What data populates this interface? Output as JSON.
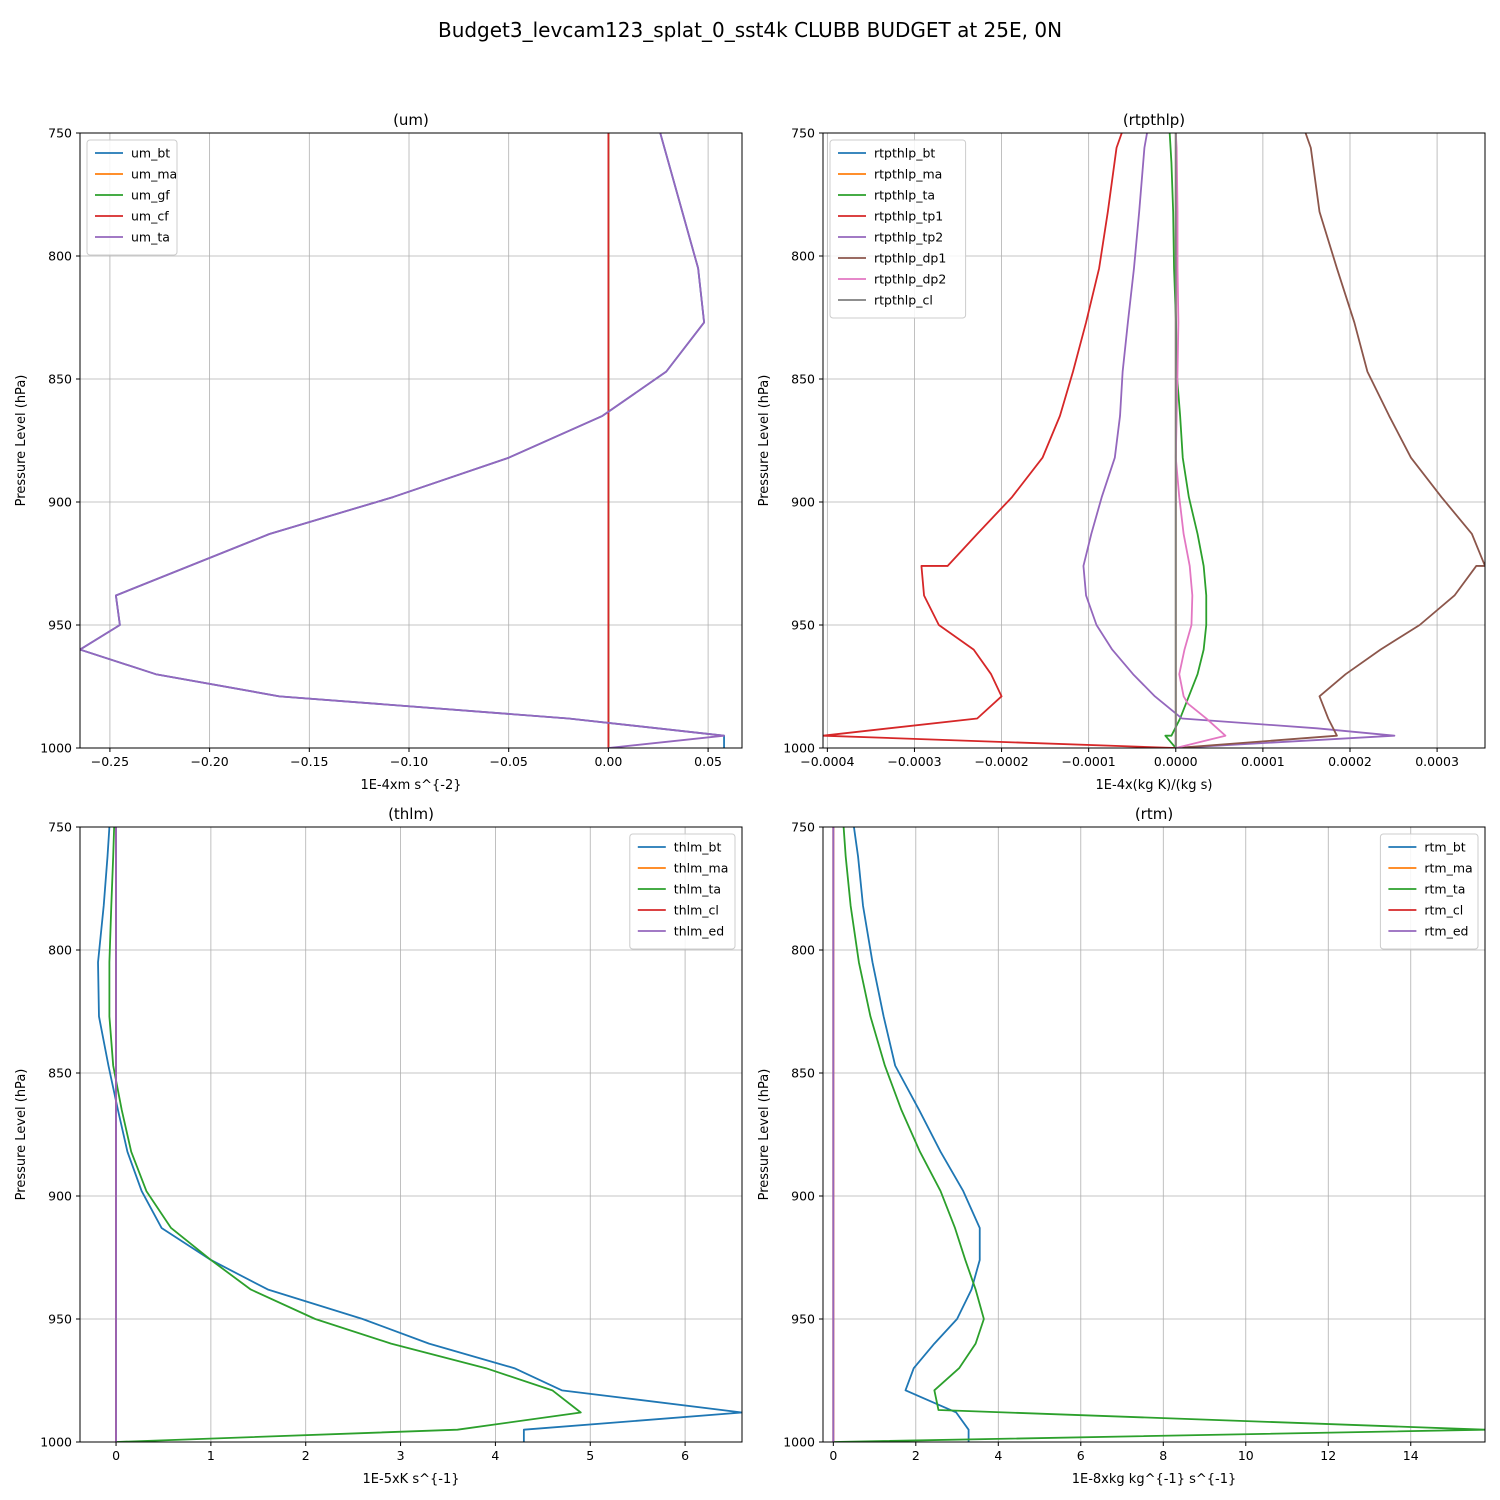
{
  "figure": {
    "title": "Budget3_levcam123_splat_0_sst4k CLUBB BUDGET at 25E, 0N"
  },
  "chart_data": [
    {
      "type": "line",
      "title": "(um)",
      "xlabel": "1E-4xm s^{-2}",
      "ylabel": "Pressure Level (hPa)",
      "xlim": [
        -0.265,
        0.067
      ],
      "ylim": [
        1000,
        750
      ],
      "xticks": [
        -0.25,
        -0.2,
        -0.15,
        -0.1,
        -0.05,
        0.0,
        0.05
      ],
      "xtick_labels": [
        "−0.25",
        "−0.20",
        "−0.15",
        "−0.10",
        "−0.05",
        "0.00",
        "0.05"
      ],
      "yticks": [
        750,
        800,
        850,
        900,
        950,
        1000
      ],
      "ytick_labels": [
        "750",
        "800",
        "850",
        "900",
        "950",
        "1000"
      ],
      "grid": true,
      "legend": "upper-left",
      "series": [
        {
          "name": "um_bt",
          "color": "#1f77b4",
          "x": [
            0.026,
            0.045,
            0.048,
            0.029,
            -0.003,
            -0.05,
            -0.108,
            -0.17,
            -0.247,
            -0.245,
            -0.265,
            -0.227,
            -0.165,
            -0.02,
            0.058,
            0.058
          ],
          "y": [
            750,
            805,
            827,
            847,
            865,
            882,
            898,
            913,
            938,
            950,
            960,
            970,
            979,
            988,
            995,
            1000
          ]
        },
        {
          "name": "um_ma",
          "color": "#ff7f0e",
          "x": [
            0,
            0
          ],
          "y": [
            750,
            1000
          ]
        },
        {
          "name": "um_gf",
          "color": "#2ca02c",
          "x": [
            0,
            0
          ],
          "y": [
            750,
            1000
          ]
        },
        {
          "name": "um_cf",
          "color": "#d62728",
          "x": [
            0,
            0
          ],
          "y": [
            750,
            1000
          ]
        },
        {
          "name": "um_ta",
          "color": "#9467bd",
          "x": [
            0.026,
            0.045,
            0.048,
            0.029,
            -0.003,
            -0.05,
            -0.108,
            -0.17,
            -0.247,
            -0.245,
            -0.265,
            -0.227,
            -0.165,
            -0.02,
            0.058,
            0.0
          ],
          "y": [
            750,
            805,
            827,
            847,
            865,
            882,
            898,
            913,
            938,
            950,
            960,
            970,
            979,
            988,
            995,
            1000
          ]
        }
      ]
    },
    {
      "type": "line",
      "title": "(rtpthlp)",
      "xlabel": "1E-4x(kg K)/(kg s)",
      "ylabel": "Pressure Level (hPa)",
      "xlim": [
        -0.000405,
        0.000355
      ],
      "ylim": [
        1000,
        750
      ],
      "xticks": [
        -0.0004,
        -0.0003,
        -0.0002,
        -0.0001,
        0.0,
        0.0001,
        0.0002,
        0.0003
      ],
      "xtick_labels": [
        "−0.0004",
        "−0.0003",
        "−0.0002",
        "−0.0001",
        "0.0000",
        "0.0001",
        "0.0002",
        "0.0003"
      ],
      "yticks": [
        750,
        800,
        850,
        900,
        950,
        1000
      ],
      "ytick_labels": [
        "750",
        "800",
        "850",
        "900",
        "950",
        "1000"
      ],
      "grid": true,
      "legend": "upper-left",
      "series": [
        {
          "name": "rtpthlp_bt",
          "color": "#1f77b4",
          "x": [
            0,
            0
          ],
          "y": [
            750,
            1000
          ]
        },
        {
          "name": "rtpthlp_ma",
          "color": "#ff7f0e",
          "x": [
            0,
            0
          ],
          "y": [
            750,
            1000
          ]
        },
        {
          "name": "rtpthlp_ta",
          "color": "#2ca02c",
          "x": [
            -7e-06,
            -5e-06,
            -3e-06,
            -2e-06,
            3e-07,
            1e-06,
            5e-06,
            8e-06,
            1.5e-05,
            2.5e-05,
            3.2e-05,
            3.5e-05,
            3.5e-05,
            3.2e-05,
            2.5e-05,
            1.5e-05,
            5e-06,
            -5e-06,
            -1.2e-05,
            0.0
          ],
          "y": [
            750,
            762,
            782,
            805,
            827,
            847,
            865,
            882,
            898,
            913,
            926,
            938,
            950,
            960,
            970,
            979,
            988,
            995,
            995,
            1000
          ]
        },
        {
          "name": "rtpthlp_tp1",
          "color": "#d62728",
          "x": [
            -6.2e-05,
            -6.8e-05,
            -7.8e-05,
            -8.8e-05,
            -0.000103,
            -0.000118,
            -0.000133,
            -0.000153,
            -0.000188,
            -0.000228,
            -0.000262,
            -0.000292,
            -0.000289,
            -0.000272,
            -0.000232,
            -0.000212,
            -0.0002,
            -0.000228,
            -0.000405,
            0.0
          ],
          "y": [
            750,
            756,
            782,
            805,
            827,
            847,
            865,
            882,
            898,
            913,
            926,
            926,
            938,
            950,
            960,
            970,
            979,
            988,
            995,
            1000
          ]
        },
        {
          "name": "rtpthlp_tp2",
          "color": "#9467bd",
          "x": [
            -3.3e-05,
            -3.6e-05,
            -4.2e-05,
            -4.8e-05,
            -5.5e-05,
            -6.1e-05,
            -6.4e-05,
            -7e-05,
            -8.5e-05,
            -9.7e-05,
            -0.000106,
            -0.000103,
            -9.1e-05,
            -7.3e-05,
            -4.9e-05,
            -2.4e-05,
            7e-06,
            0.000162,
            0.000251,
            0.0
          ],
          "y": [
            750,
            756,
            782,
            805,
            827,
            847,
            865,
            882,
            898,
            913,
            926,
            938,
            950,
            960,
            970,
            979,
            988,
            992,
            995,
            1000
          ]
        },
        {
          "name": "rtpthlp_dp1",
          "color": "#8c564b",
          "x": [
            0.000149,
            0.000155,
            0.000165,
            0.000185,
            0.000205,
            0.00022,
            0.000245,
            0.00027,
            0.000305,
            0.00034,
            0.000355,
            0.000345,
            0.00032,
            0.00028,
            0.000235,
            0.000195,
            0.000165,
            0.000175,
            0.000185,
            0.0
          ],
          "y": [
            750,
            756,
            782,
            805,
            827,
            847,
            865,
            882,
            898,
            913,
            926,
            926,
            938,
            950,
            960,
            970,
            979,
            988,
            995,
            1000
          ]
        },
        {
          "name": "rtpthlp_dp2",
          "color": "#e377c2",
          "x": [
            0.0,
            1e-06,
            2e-06,
            2e-06,
            3e-06,
            2e-06,
            1e-06,
            0.0,
            4e-06,
            9e-06,
            1.6e-05,
            1.9e-05,
            1.8e-05,
            1e-05,
            4e-06,
            9e-06,
            1.4e-05,
            3.5e-05,
            5.7e-05,
            0.0
          ],
          "y": [
            750,
            756,
            782,
            805,
            827,
            847,
            865,
            882,
            898,
            913,
            926,
            938,
            950,
            960,
            970,
            979,
            982,
            988,
            995,
            1000
          ]
        },
        {
          "name": "rtpthlp_cl",
          "color": "#7f7f7f",
          "x": [
            0,
            0
          ],
          "y": [
            750,
            1000
          ]
        }
      ]
    },
    {
      "type": "line",
      "title": "(thlm)",
      "xlabel": "1E-5xK s^{-1}",
      "ylabel": "Pressure Level (hPa)",
      "xlim": [
        -0.38,
        6.6
      ],
      "ylim": [
        1000,
        750
      ],
      "xticks": [
        0,
        1,
        2,
        3,
        4,
        5,
        6
      ],
      "xtick_labels": [
        "0",
        "1",
        "2",
        "3",
        "4",
        "5",
        "6"
      ],
      "yticks": [
        750,
        800,
        850,
        900,
        950,
        1000
      ],
      "ytick_labels": [
        "750",
        "800",
        "850",
        "900",
        "950",
        "1000"
      ],
      "grid": true,
      "legend": "upper-right",
      "series": [
        {
          "name": "thlm_bt",
          "color": "#1f77b4",
          "x": [
            -0.07,
            -0.09,
            -0.13,
            -0.19,
            -0.18,
            -0.08,
            0.02,
            0.12,
            0.27,
            0.48,
            1.0,
            1.6,
            2.6,
            3.3,
            4.2,
            4.7,
            6.6,
            4.3,
            4.3
          ],
          "y": [
            750,
            762,
            782,
            805,
            827,
            847,
            865,
            882,
            898,
            913,
            926,
            938,
            950,
            960,
            970,
            979,
            988,
            995,
            1000
          ]
        },
        {
          "name": "thlm_ma",
          "color": "#ff7f0e",
          "x": [
            0,
            0
          ],
          "y": [
            750,
            1000
          ]
        },
        {
          "name": "thlm_ta",
          "color": "#2ca02c",
          "x": [
            -0.02,
            -0.03,
            -0.05,
            -0.07,
            -0.07,
            -0.03,
            0.06,
            0.16,
            0.32,
            0.58,
            1.0,
            1.42,
            2.1,
            2.9,
            3.9,
            4.6,
            4.9,
            3.6,
            0.0
          ],
          "y": [
            750,
            762,
            782,
            805,
            827,
            847,
            865,
            882,
            898,
            913,
            926,
            938,
            950,
            960,
            970,
            979,
            988,
            995,
            1000
          ]
        },
        {
          "name": "thlm_cl",
          "color": "#d62728",
          "x": [
            0,
            0
          ],
          "y": [
            750,
            1000
          ]
        },
        {
          "name": "thlm_ed",
          "color": "#9467bd",
          "x": [
            0,
            0
          ],
          "y": [
            750,
            1000
          ]
        }
      ]
    },
    {
      "type": "line",
      "title": "(rtm)",
      "xlabel": "1E-8xkg kg^{-1} s^{-1}",
      "ylabel": "Pressure Level (hPa)",
      "xlim": [
        -0.25,
        15.8
      ],
      "ylim": [
        1000,
        750
      ],
      "xticks": [
        0,
        2,
        4,
        6,
        8,
        10,
        12,
        14
      ],
      "xtick_labels": [
        "0",
        "2",
        "4",
        "6",
        "8",
        "10",
        "12",
        "14"
      ],
      "yticks": [
        750,
        800,
        850,
        900,
        950,
        1000
      ],
      "ytick_labels": [
        "750",
        "800",
        "850",
        "900",
        "950",
        "1000"
      ],
      "grid": true,
      "legend": "upper-right",
      "series": [
        {
          "name": "rtm_bt",
          "color": "#1f77b4",
          "x": [
            0.5,
            0.6,
            0.72,
            0.95,
            1.22,
            1.5,
            2.08,
            2.6,
            3.15,
            3.55,
            3.55,
            3.35,
            3.0,
            2.45,
            1.95,
            1.75,
            2.98,
            3.28,
            3.28
          ],
          "y": [
            750,
            762,
            782,
            805,
            827,
            847,
            865,
            882,
            898,
            913,
            926,
            938,
            950,
            960,
            970,
            979,
            988,
            995,
            1000
          ]
        },
        {
          "name": "rtm_ma",
          "color": "#ff7f0e",
          "x": [
            0,
            0
          ],
          "y": [
            750,
            1000
          ]
        },
        {
          "name": "rtm_ta",
          "color": "#2ca02c",
          "x": [
            0.25,
            0.3,
            0.42,
            0.62,
            0.9,
            1.25,
            1.65,
            2.1,
            2.6,
            2.95,
            3.2,
            3.45,
            3.65,
            3.45,
            3.05,
            2.45,
            2.55,
            15.8,
            0.0
          ],
          "y": [
            750,
            762,
            782,
            805,
            827,
            847,
            865,
            882,
            898,
            913,
            926,
            938,
            950,
            960,
            970,
            979,
            987,
            995,
            1000
          ]
        },
        {
          "name": "rtm_cl",
          "color": "#d62728",
          "x": [
            0,
            0
          ],
          "y": [
            750,
            1000
          ]
        },
        {
          "name": "rtm_ed",
          "color": "#9467bd",
          "x": [
            0,
            0
          ],
          "y": [
            750,
            1000
          ]
        }
      ]
    }
  ]
}
